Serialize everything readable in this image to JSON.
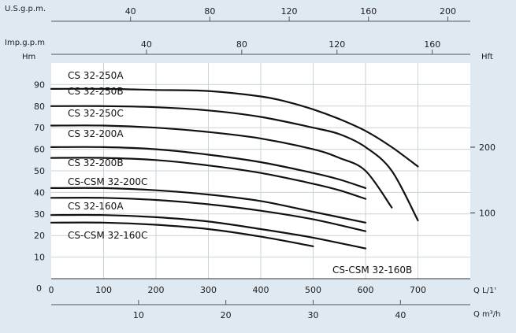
{
  "chart_data": {
    "type": "line",
    "title": "",
    "x_primary": {
      "label": "Q L/1'",
      "ticks": [
        0,
        100,
        200,
        300,
        400,
        500,
        600,
        700
      ],
      "range": [
        0,
        800
      ]
    },
    "x_m3h": {
      "label": "Q m³/h",
      "ticks": [
        10,
        20,
        30,
        40
      ]
    },
    "x_usgpm": {
      "label": "U.S.g.p.m.",
      "ticks": [
        40,
        80,
        120,
        160,
        200
      ]
    },
    "x_impgpm": {
      "label": "Imp.g.p.m",
      "ticks": [
        40,
        80,
        120,
        160
      ]
    },
    "y_left": {
      "label": "Hm",
      "ticks": [
        0,
        10,
        20,
        30,
        40,
        50,
        60,
        70,
        80,
        90
      ],
      "range": [
        0,
        100
      ]
    },
    "y_right": {
      "label": "Hft",
      "ticks": [
        100,
        200
      ]
    },
    "grid": true,
    "series": [
      {
        "name": "CS 32-250A",
        "x": [
          0,
          100,
          200,
          300,
          400,
          450,
          500,
          550,
          600,
          650,
          700
        ],
        "y": [
          88,
          88,
          87.5,
          87,
          84.5,
          82,
          78.5,
          74,
          68.5,
          61,
          52
        ]
      },
      {
        "name": "CS 32-250B",
        "x": [
          0,
          100,
          200,
          300,
          400,
          500,
          550,
          600,
          650,
          700
        ],
        "y": [
          80,
          80,
          79.5,
          78,
          75,
          70,
          67,
          61,
          50,
          27
        ]
      },
      {
        "name": "CS 32-250C",
        "x": [
          0,
          100,
          200,
          300,
          400,
          500,
          550,
          600,
          650
        ],
        "y": [
          71,
          71,
          70,
          68,
          65,
          60,
          56,
          50,
          33
        ]
      },
      {
        "name": "CS 32-200A",
        "x": [
          0,
          100,
          200,
          300,
          400,
          500,
          550,
          600
        ],
        "y": [
          61,
          61,
          60,
          57.5,
          54,
          49,
          46,
          42
        ]
      },
      {
        "name": "CS 32-200B",
        "x": [
          0,
          100,
          200,
          300,
          400,
          500,
          550,
          600
        ],
        "y": [
          56,
          56,
          55,
          52.5,
          49,
          44,
          41,
          37
        ]
      },
      {
        "name": "CS-CSM 32-200C",
        "x": [
          0,
          100,
          200,
          300,
          400,
          500,
          600
        ],
        "y": [
          42,
          42,
          41,
          39,
          36,
          31,
          26
        ]
      },
      {
        "name": "CS 32-160A",
        "x": [
          0,
          100,
          200,
          300,
          400,
          500,
          600
        ],
        "y": [
          37.5,
          37.5,
          36.5,
          34.5,
          31.5,
          27.5,
          22
        ]
      },
      {
        "name": "CS-CSM 32-160B",
        "x": [
          0,
          100,
          200,
          300,
          400,
          500,
          600
        ],
        "y": [
          29.5,
          29.5,
          28.5,
          26.5,
          23,
          19,
          14
        ]
      },
      {
        "name": "CS-CSM 32-160C",
        "x": [
          0,
          100,
          200,
          300,
          400,
          500
        ],
        "y": [
          26,
          26,
          25,
          23,
          19.5,
          15
        ]
      }
    ]
  }
}
